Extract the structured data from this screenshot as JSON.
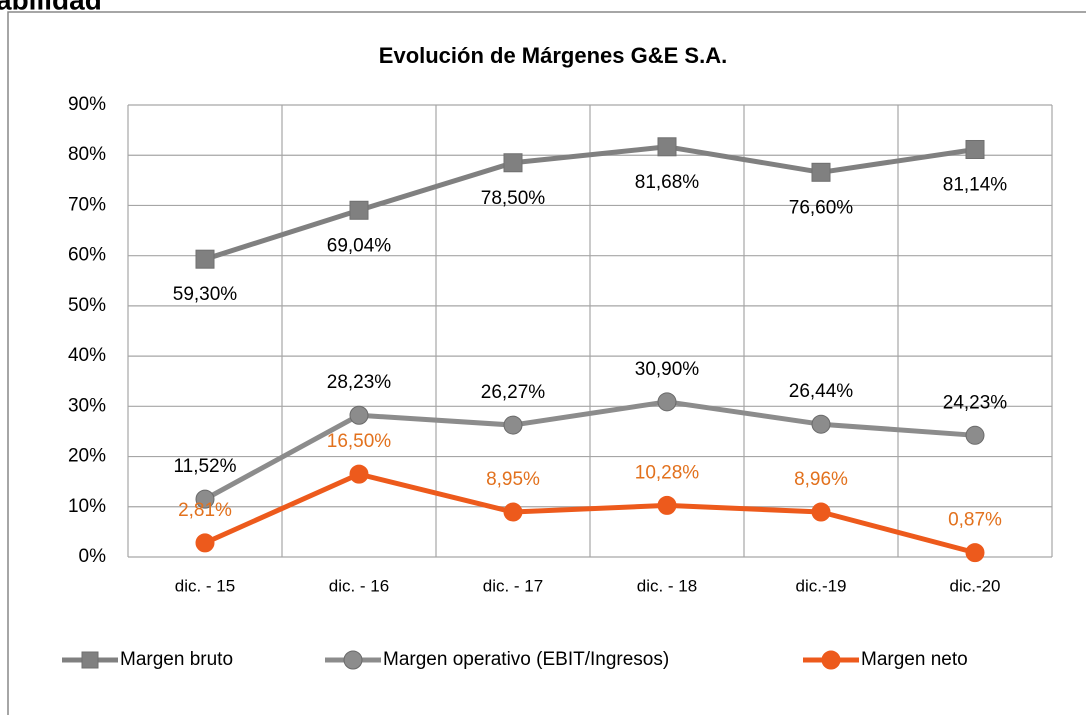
{
  "page_heading": "abilidad",
  "chart_data": {
    "type": "line",
    "title": "Evolución de Márgenes G&E S.A.",
    "categories": [
      "dic. - 15",
      "dic. - 16",
      "dic. - 17",
      "dic. - 18",
      "dic.-19",
      "dic.-20"
    ],
    "ylim": [
      0,
      90
    ],
    "yticks": [
      {
        "value": 0,
        "label": "0%"
      },
      {
        "value": 10,
        "label": "10%"
      },
      {
        "value": 20,
        "label": "20%"
      },
      {
        "value": 30,
        "label": "30%"
      },
      {
        "value": 40,
        "label": "40%"
      },
      {
        "value": 50,
        "label": "50%"
      },
      {
        "value": 60,
        "label": "60%"
      },
      {
        "value": 70,
        "label": "70%"
      },
      {
        "value": 80,
        "label": "80%"
      },
      {
        "value": 90,
        "label": "90%"
      }
    ],
    "grid": true,
    "legend": "bottom",
    "series": [
      {
        "name": "Margen bruto",
        "color": "#808080",
        "marker": "square",
        "label_position": "below",
        "label_color": "#000000",
        "values": [
          59.3,
          69.04,
          78.5,
          81.68,
          76.6,
          81.14
        ],
        "value_labels": [
          "59,30%",
          "69,04%",
          "78,50%",
          "81,68%",
          "76,60%",
          "81,14%"
        ]
      },
      {
        "name": "Margen operativo  (EBIT/Ingresos)",
        "color": "#8c8c8c",
        "marker": "circle",
        "label_position": "above",
        "label_color": "#000000",
        "values": [
          11.52,
          28.23,
          26.27,
          30.9,
          26.44,
          24.23
        ],
        "value_labels": [
          "11,52%",
          "28,23%",
          "26,27%",
          "30,90%",
          "26,44%",
          "24,23%"
        ]
      },
      {
        "name": "Margen neto",
        "color": "#ed5a1c",
        "marker": "circle",
        "label_position": "above",
        "label_color": "#e2711d",
        "values": [
          2.81,
          16.5,
          8.95,
          10.28,
          8.96,
          0.87
        ],
        "value_labels": [
          "2,81%",
          "16,50%",
          "8,95%",
          "10,28%",
          "8,96%",
          "0,87%"
        ]
      }
    ]
  }
}
